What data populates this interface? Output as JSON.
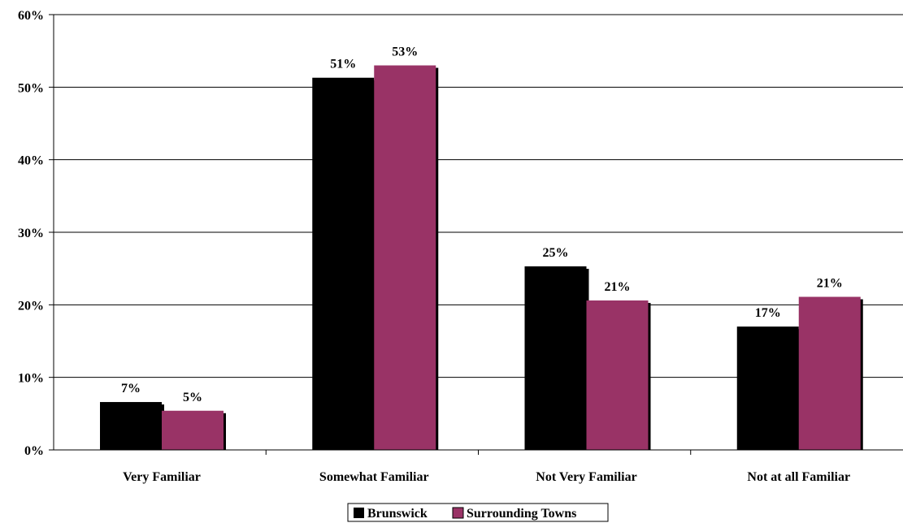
{
  "chart_data": {
    "type": "bar",
    "title": "",
    "xlabel": "",
    "ylabel": "",
    "categories": [
      "Very Familiar",
      "Somewhat Familiar",
      "Not Very Familiar",
      "Not at all Familiar"
    ],
    "series": [
      {
        "name": "Brunswick",
        "values": [
          6.6,
          51.3,
          25.3,
          17.0
        ],
        "labels": [
          "7%",
          "51%",
          "25%",
          "17%"
        ],
        "color": "#000000"
      },
      {
        "name": "Surrounding Towns",
        "values": [
          5.4,
          53.0,
          20.6,
          21.1
        ],
        "labels": [
          "5%",
          "53%",
          "21%",
          "21%"
        ],
        "color": "#993366"
      }
    ],
    "ylim": [
      0,
      60
    ],
    "yticks": [
      0,
      10,
      20,
      30,
      40,
      50,
      60
    ],
    "ytick_labels": [
      "0%",
      "10%",
      "20%",
      "30%",
      "40%",
      "50%",
      "60%"
    ],
    "grid": true,
    "legend": "bottom-center"
  }
}
